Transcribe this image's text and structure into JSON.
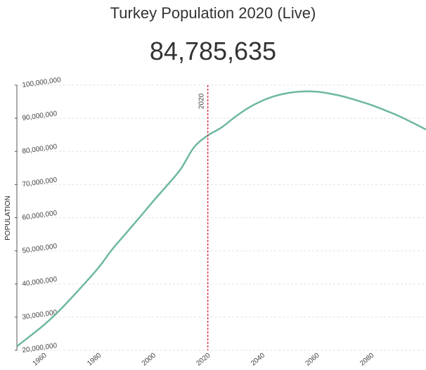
{
  "page": {
    "title": "Turkey Population 2020 (Live)",
    "live_count": "84,785,635"
  },
  "colors": {
    "line": "#6db8a0",
    "marker": "#d9344a",
    "grid": "#e2e2e2",
    "axis": "#555555"
  },
  "chart_data": {
    "type": "line",
    "title": "",
    "xlabel": "",
    "ylabel": "POPULATION",
    "xlim": [
      1950,
      2100
    ],
    "ylim": [
      20000000,
      100000000
    ],
    "grid": true,
    "legend": "none",
    "x_ticks": [
      1960,
      1980,
      2000,
      2020,
      2040,
      2060,
      2080
    ],
    "y_ticks": [
      20000000,
      30000000,
      40000000,
      50000000,
      60000000,
      70000000,
      80000000,
      90000000,
      100000000
    ],
    "y_tick_labels": [
      "20,000,000",
      "30,000,000",
      "40,000,000",
      "50,000,000",
      "60,000,000",
      "70,000,000",
      "80,000,000",
      "90,000,000",
      "100,000,000"
    ],
    "marker": {
      "x": 2020,
      "label": "2020"
    },
    "series": [
      {
        "name": "",
        "x": [
          1950,
          1955,
          1960,
          1965,
          1970,
          1975,
          1980,
          1985,
          1990,
          1995,
          2000,
          2005,
          2010,
          2015,
          2020,
          2025,
          2030,
          2035,
          2040,
          2045,
          2050,
          2055,
          2060,
          2065,
          2070,
          2075,
          2080,
          2085,
          2090,
          2095,
          2100
        ],
        "values": [
          21200000,
          24400000,
          27700000,
          31500000,
          35800000,
          40300000,
          45000000,
          50500000,
          55300000,
          60100000,
          65000000,
          69700000,
          74600000,
          81300000,
          84800000,
          87200000,
          90400000,
          93200000,
          95300000,
          96800000,
          97700000,
          98100000,
          98000000,
          97400000,
          96500000,
          95300000,
          94000000,
          92400000,
          90700000,
          88700000,
          86600000
        ]
      }
    ]
  }
}
